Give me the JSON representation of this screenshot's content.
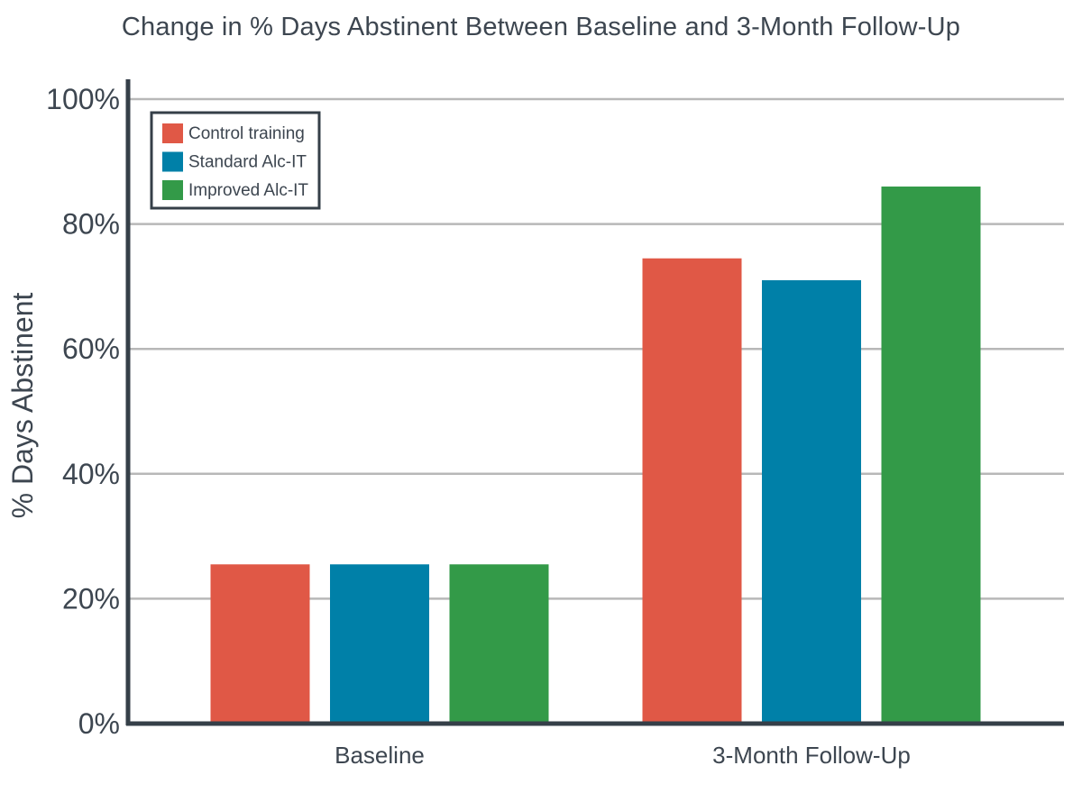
{
  "chart_data": {
    "type": "bar",
    "title": "Change in % Days Abstinent Between Baseline and 3-Month Follow-Up",
    "xlabel": "",
    "ylabel": "% Days Abstinent",
    "ylim": [
      0,
      100
    ],
    "yticks": [
      0,
      20,
      40,
      60,
      80,
      100
    ],
    "ytick_labels": [
      "0%",
      "20%",
      "40%",
      "60%",
      "80%",
      "100%"
    ],
    "categories": [
      "Baseline",
      "3-Month Follow-Up"
    ],
    "series": [
      {
        "name": "Control training",
        "color": "#e05846",
        "values": [
          25.5,
          74.5
        ]
      },
      {
        "name": "Standard Alc-IT",
        "color": "#0080a8",
        "values": [
          25.5,
          71
        ]
      },
      {
        "name": "Improved Alc-IT",
        "color": "#339a48",
        "values": [
          25.5,
          86
        ]
      }
    ],
    "grid": true,
    "legend_position": "top-left",
    "axis_color": "#353f48",
    "grid_color": "#b8b8b8"
  }
}
